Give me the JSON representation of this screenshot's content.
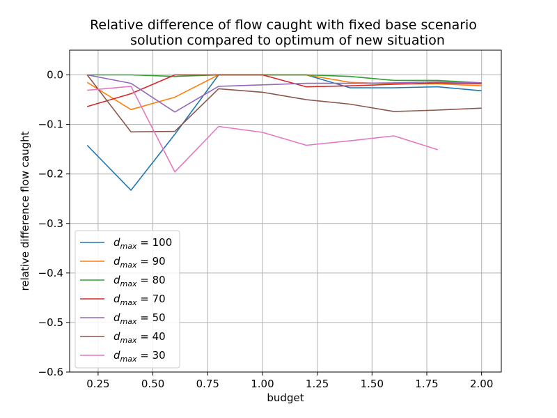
{
  "chart_data": {
    "type": "line",
    "title_line1": "Relative difference of flow caught with fixed base scenario",
    "title_line2": "solution compared to optimum of new situation",
    "xlabel": "budget",
    "ylabel": "relative difference flow caught",
    "xlim": [
      0.12,
      2.09
    ],
    "ylim": [
      -0.6,
      0.05
    ],
    "xticks": [
      0.25,
      0.5,
      0.75,
      1.0,
      1.25,
      1.5,
      1.75,
      2.0
    ],
    "xtick_labels": [
      "0.25",
      "0.50",
      "0.75",
      "1.00",
      "1.25",
      "1.50",
      "1.75",
      "2.00"
    ],
    "yticks": [
      0.0,
      -0.1,
      -0.2,
      -0.3,
      -0.4,
      -0.5,
      -0.6
    ],
    "ytick_labels": [
      "0.0",
      "−0.1",
      "−0.2",
      "−0.3",
      "−0.4",
      "−0.5",
      "−0.6"
    ],
    "grid": true,
    "legend_position": "lower-left",
    "legend_prefix": "d",
    "legend_subscript": "max",
    "series": [
      {
        "name": "100",
        "color": "#1f77b4",
        "x": [
          0.2,
          0.4,
          0.6,
          0.8,
          1.0,
          1.2,
          1.4,
          1.6,
          1.8,
          2.0
        ],
        "y": [
          -0.142,
          -0.233,
          -0.12,
          0.0,
          0.0,
          0.0,
          -0.026,
          -0.026,
          -0.024,
          -0.032
        ]
      },
      {
        "name": "90",
        "color": "#ff7f0e",
        "x": [
          0.2,
          0.4,
          0.6,
          0.8,
          1.0,
          1.2,
          1.4,
          1.6,
          1.8,
          2.0
        ],
        "y": [
          -0.015,
          -0.07,
          -0.045,
          0.0,
          0.0,
          0.0,
          -0.015,
          -0.018,
          -0.018,
          -0.022
        ]
      },
      {
        "name": "80",
        "color": "#2ca02c",
        "x": [
          0.2,
          0.4,
          0.6,
          0.8,
          1.0,
          1.2,
          1.4,
          1.6,
          1.8,
          2.0
        ],
        "y": [
          0.0,
          0.0,
          -0.003,
          0.0,
          0.0,
          0.0,
          -0.003,
          -0.011,
          -0.011,
          -0.016
        ]
      },
      {
        "name": "70",
        "color": "#d62728",
        "x": [
          0.2,
          0.4,
          0.6,
          0.8,
          1.0,
          1.2,
          1.4,
          1.6,
          1.8,
          2.0
        ],
        "y": [
          -0.064,
          -0.038,
          0.0,
          0.0,
          0.0,
          -0.024,
          -0.022,
          -0.019,
          -0.016,
          -0.018
        ]
      },
      {
        "name": "50",
        "color": "#9467bd",
        "x": [
          0.2,
          0.4,
          0.6,
          0.8,
          1.0,
          1.2,
          1.4,
          1.6,
          1.8,
          2.0
        ],
        "y": [
          0.0,
          -0.017,
          -0.075,
          -0.023,
          -0.02,
          -0.017,
          -0.017,
          -0.016,
          -0.014,
          -0.016
        ]
      },
      {
        "name": "40",
        "color": "#8c564b",
        "x": [
          0.2,
          0.4,
          0.6,
          0.8,
          1.0,
          1.2,
          1.4,
          1.6,
          1.8,
          2.0
        ],
        "y": [
          0.0,
          -0.115,
          -0.114,
          -0.028,
          -0.035,
          -0.05,
          -0.059,
          -0.074,
          -0.071,
          -0.067
        ]
      },
      {
        "name": "30",
        "color": "#e377c2",
        "x": [
          0.2,
          0.4,
          0.6,
          0.8,
          1.0,
          1.2,
          1.4,
          1.6,
          1.8
        ],
        "y": [
          -0.031,
          -0.023,
          -0.196,
          -0.104,
          -0.116,
          -0.142,
          -0.133,
          -0.123,
          -0.151
        ]
      }
    ]
  }
}
